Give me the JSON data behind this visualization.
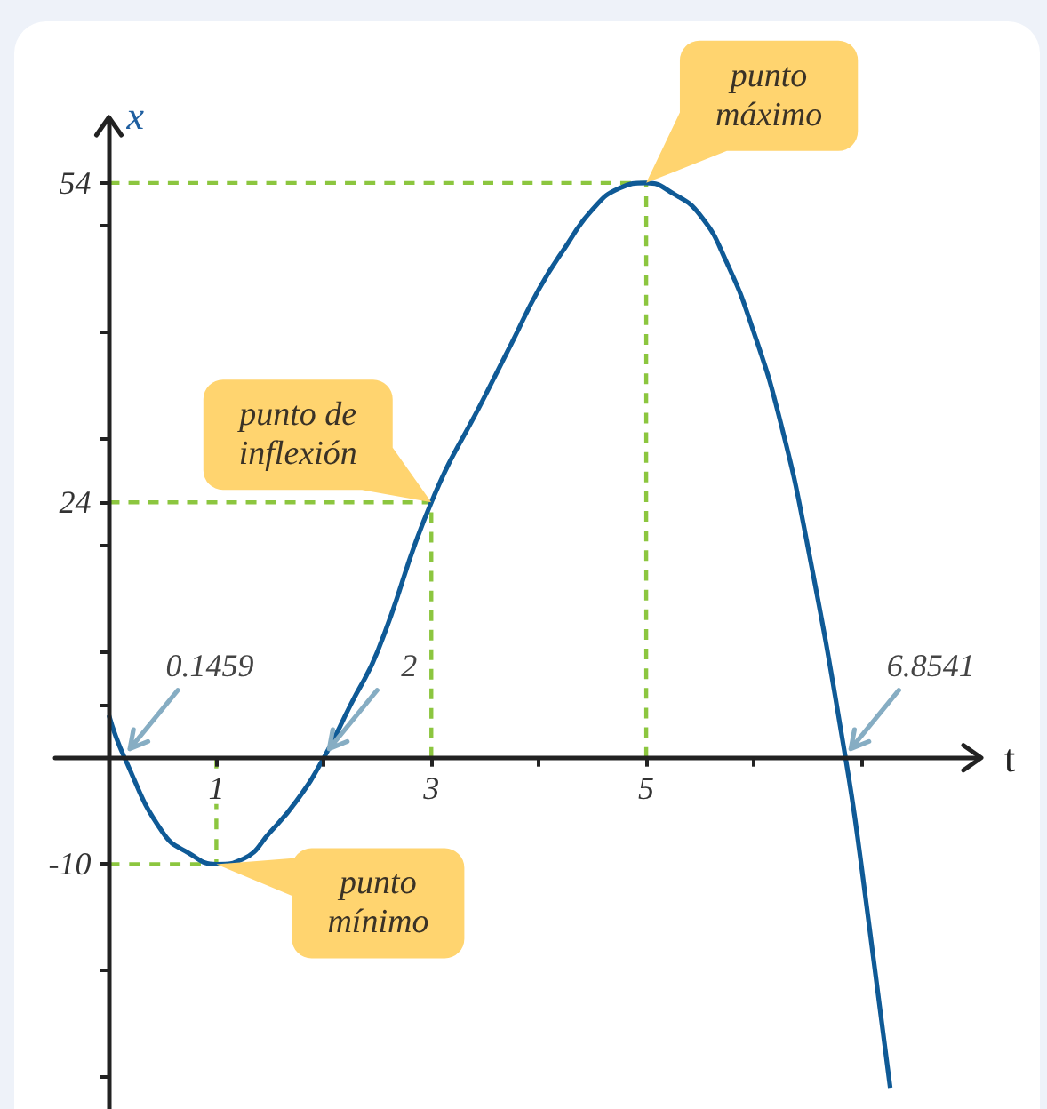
{
  "chart_data": {
    "type": "line",
    "xlabel": "t",
    "ylabel": "x",
    "xlim": [
      -0.5,
      8.1
    ],
    "xticks": [
      1,
      {
        "value": 2,
        "label": null
      },
      3,
      {
        "value": 4,
        "label": null
      },
      5,
      {
        "value": 6,
        "label": null
      },
      {
        "value": 7,
        "label": null
      }
    ],
    "ylim": [
      -33,
      60
    ],
    "yticks": [
      {
        "value": -30,
        "label": null
      },
      {
        "value": -20,
        "label": null
      },
      -10,
      {
        "value": 5,
        "label": null
      },
      {
        "value": 10,
        "label": null
      },
      {
        "value": 20,
        "label": null
      },
      24,
      {
        "value": 30,
        "label": null
      },
      {
        "value": 40,
        "label": null
      },
      {
        "value": 50,
        "label": null
      },
      54
    ],
    "grid": false,
    "marker": "none",
    "series": [
      {
        "x": [
          0,
          5,
          5
        ],
        "values": [
          54,
          54,
          0
        ],
        "color": "#8cc63f",
        "line_style": "dashed"
      },
      {
        "x": [
          0,
          3,
          3
        ],
        "values": [
          24,
          24,
          0
        ],
        "color": "#8cc63f",
        "line_style": "dashed"
      },
      {
        "x": [
          0,
          1,
          1
        ],
        "values": [
          -10,
          -10,
          0
        ],
        "color": "#8cc63f",
        "line_style": "dashed"
      },
      {
        "x": [
          0,
          0.1459,
          0.5,
          0.75,
          1,
          1.25,
          1.5,
          1.75,
          2,
          2.25,
          2.5,
          3,
          3.5,
          3.75,
          4,
          4.25,
          4.5,
          4.75,
          5,
          5.25,
          5.5,
          5.75,
          6,
          6.25,
          6.5,
          6.8541,
          7,
          7.27
        ],
        "values": [
          4,
          0,
          -7,
          -9,
          -10,
          -9.5,
          -7,
          -4,
          0,
          5,
          10,
          24,
          34,
          39,
          44,
          48,
          51.5,
          53.5,
          54,
          53,
          51,
          46.5,
          40,
          31.5,
          20,
          0,
          -10,
          -31
        ],
        "color": "#0f5a96",
        "line_style": "solid"
      }
    ],
    "annotations": [
      {
        "text": "punto máximo",
        "x": 5,
        "y": 54
      },
      {
        "text": "punto de inflexión",
        "x": 3,
        "y": 24
      },
      {
        "text": "punto mínimo",
        "x": 1,
        "y": -10
      },
      {
        "text": "0.1459",
        "x": 0.1459,
        "y": 0
      },
      {
        "text": "2",
        "x": 2,
        "y": 0
      },
      {
        "text": "6.8541",
        "x": 6.8541,
        "y": 0
      }
    ]
  }
}
